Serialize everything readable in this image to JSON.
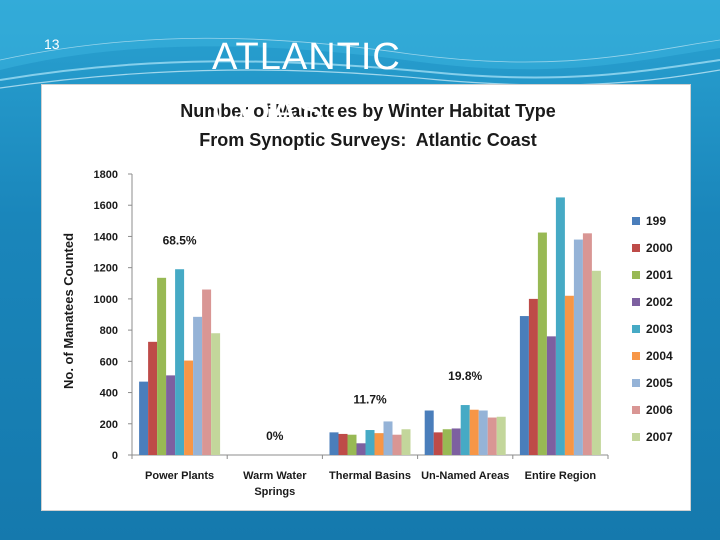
{
  "slide": {
    "number": "13",
    "title": "ATLANTIC COAST",
    "colors": {
      "background": "#1d8fc0",
      "title": "#ffffff"
    }
  },
  "chart_data": {
    "type": "bar",
    "title": "Number of Manatees by Winter Habitat Type",
    "subtitle": "From Synoptic Surveys:  Atlantic Coast",
    "xlabel": "",
    "ylabel": "No. of Manatees Counted",
    "ylim": [
      0,
      1800
    ],
    "yticks": [
      0,
      200,
      400,
      600,
      800,
      1000,
      1200,
      1400,
      1600,
      1800
    ],
    "grid": false,
    "legend_position": "right",
    "categories": [
      "Power Plants",
      "Warm Water Springs",
      "Thermal Basins",
      "Un-Named Areas",
      "Entire Region"
    ],
    "category_labels": [
      [
        "Power Plants"
      ],
      [
        "Warm Water",
        "Springs"
      ],
      [
        "Thermal Basins"
      ],
      [
        "Un-Named Areas"
      ],
      [
        "Entire Region"
      ]
    ],
    "series": [
      {
        "name": "199",
        "color": "#4a7ebb",
        "values": [
          470,
          0,
          145,
          285,
          890
        ]
      },
      {
        "name": "2000",
        "color": "#be4b48",
        "values": [
          725,
          0,
          135,
          145,
          1000
        ]
      },
      {
        "name": "2001",
        "color": "#98b954",
        "values": [
          1135,
          0,
          130,
          165,
          1425
        ]
      },
      {
        "name": "2002",
        "color": "#7d60a0",
        "values": [
          510,
          0,
          75,
          170,
          760
        ]
      },
      {
        "name": "2003",
        "color": "#46aac5",
        "values": [
          1190,
          0,
          160,
          320,
          1650
        ]
      },
      {
        "name": "2004",
        "color": "#f79646",
        "values": [
          605,
          0,
          140,
          290,
          1020
        ]
      },
      {
        "name": "2005",
        "color": "#95b3d7",
        "values": [
          885,
          0,
          215,
          285,
          1380
        ]
      },
      {
        "name": "2006",
        "color": "#d99694",
        "values": [
          1060,
          0,
          130,
          240,
          1420
        ]
      },
      {
        "name": "2007",
        "color": "#c3d69b",
        "values": [
          780,
          0,
          165,
          245,
          1180
        ]
      }
    ],
    "annotations": [
      {
        "text": "68.5%",
        "category_index": 0,
        "y_value": 1350
      },
      {
        "text": "0%",
        "category_index": 1,
        "y_value": 95
      },
      {
        "text": "11.7%",
        "category_index": 2,
        "y_value": 330
      },
      {
        "text": "19.8%",
        "category_index": 3,
        "y_value": 480
      }
    ]
  }
}
